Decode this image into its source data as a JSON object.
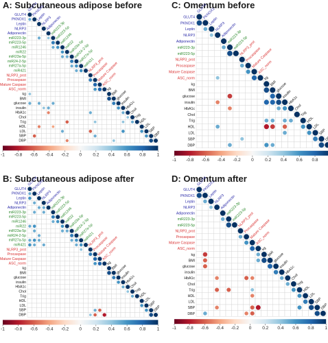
{
  "colors": {
    "protein": "#2a2aa8",
    "mirna": "#2e8b2e",
    "inflammasome": "#d93030",
    "clinical": "#111111",
    "grid": "#d0d0d0",
    "scale_neg": "#67001f",
    "scale_mid": "#f7f7f7",
    "scale_pos": "#053061"
  },
  "colorbar": {
    "ticks": [
      "-1",
      "-0.8",
      "-0.6",
      "-0.4",
      "-0.2",
      "0",
      "0.2",
      "0.4",
      "0.6",
      "0.8",
      "1"
    ]
  },
  "chart_data": [
    {
      "type": "heatmap",
      "title": "A: Subcutaneous adipose before",
      "variables": [
        "GLUT4",
        "PKNOX1",
        "Leptin",
        "NLRP3",
        "Adiponectin",
        "miR223-3p",
        "miR223-5p",
        "miR1246",
        "miR22",
        "miR23a-5p",
        "miR24-2-5p",
        "miR27a-5p",
        "miR421",
        "NLRP3_prot",
        "Procaspase",
        "Mature Caspase",
        "ASC_norm",
        "kg",
        "BMI",
        "glucose",
        "insulin",
        "HbA1c",
        "Chol",
        "Trig",
        "HDL",
        "LDL",
        "SBP",
        "DBP"
      ],
      "groups": [
        "protein",
        "protein",
        "protein",
        "protein",
        "protein",
        "mirna",
        "mirna",
        "mirna",
        "mirna",
        "mirna",
        "mirna",
        "mirna",
        "mirna",
        "inflammasome",
        "inflammasome",
        "inflammasome",
        "inflammasome",
        "clinical",
        "clinical",
        "clinical",
        "clinical",
        "clinical",
        "clinical",
        "clinical",
        "clinical",
        "clinical",
        "clinical",
        "clinical"
      ],
      "cells": [
        [
          1,
          0,
          0.5
        ],
        [
          5,
          2,
          0.5
        ],
        [
          5,
          4,
          0.4
        ],
        [
          6,
          5,
          0.7
        ],
        [
          7,
          5,
          0.5
        ],
        [
          7,
          6,
          0.6
        ],
        [
          8,
          7,
          0.6
        ],
        [
          9,
          7,
          0.5
        ],
        [
          9,
          8,
          0.5
        ],
        [
          10,
          9,
          0.7
        ],
        [
          11,
          9,
          0.5
        ],
        [
          11,
          10,
          0.6
        ],
        [
          12,
          10,
          0.5
        ],
        [
          12,
          11,
          0.6
        ],
        [
          14,
          13,
          0.7
        ],
        [
          15,
          14,
          0.8
        ],
        [
          16,
          15,
          0.8
        ],
        [
          16,
          14,
          0.6
        ],
        [
          18,
          17,
          0.9
        ],
        [
          19,
          18,
          0.7
        ],
        [
          20,
          19,
          0.6
        ],
        [
          21,
          20,
          0.5
        ],
        [
          22,
          21,
          0.4
        ],
        [
          23,
          22,
          0.5
        ],
        [
          25,
          24,
          0.6
        ],
        [
          26,
          25,
          0.6
        ],
        [
          27,
          26,
          0.9
        ],
        [
          17,
          0,
          0.4
        ],
        [
          19,
          0,
          0.5
        ],
        [
          19,
          2,
          0.5
        ],
        [
          19,
          5,
          0.5
        ],
        [
          20,
          3,
          0.4
        ],
        [
          20,
          4,
          0.5
        ],
        [
          21,
          4,
          -0.5
        ],
        [
          21,
          13,
          0.5
        ],
        [
          23,
          8,
          -0.6
        ],
        [
          23,
          14,
          0.4
        ],
        [
          23,
          20,
          0.4
        ],
        [
          24,
          2,
          -0.5
        ],
        [
          24,
          5,
          -0.4
        ],
        [
          25,
          13,
          -0.6
        ],
        [
          25,
          20,
          0.6
        ],
        [
          26,
          1,
          -0.6
        ],
        [
          26,
          14,
          0.5
        ],
        [
          27,
          8,
          -0.5
        ],
        [
          27,
          18,
          0.4
        ],
        [
          25,
          7,
          0.5
        ]
      ]
    },
    {
      "type": "heatmap",
      "title": "C: Omentum before",
      "variables": [
        "GLUT4",
        "PKNOX1",
        "Leptin",
        "NLRP3",
        "Adiponectin",
        "miR223-3p",
        "miR223-5p",
        "NLRP3_prot",
        "Procaspase",
        "Mature Caspase",
        "ASC_norm",
        "kg",
        "BMI",
        "glucose",
        "insulin",
        "HbA1c",
        "Chol",
        "Trig",
        "HDL",
        "LDL",
        "SBP",
        "DBP"
      ],
      "groups": [
        "protein",
        "protein",
        "protein",
        "protein",
        "protein",
        "mirna",
        "mirna",
        "inflammasome",
        "inflammasome",
        "inflammasome",
        "inflammasome",
        "clinical",
        "clinical",
        "clinical",
        "clinical",
        "clinical",
        "clinical",
        "clinical",
        "clinical",
        "clinical",
        "clinical",
        "clinical"
      ],
      "cells": [
        [
          1,
          0,
          0.9
        ],
        [
          2,
          1,
          0.5
        ],
        [
          3,
          2,
          0.4
        ],
        [
          5,
          4,
          0.5
        ],
        [
          6,
          5,
          0.9
        ],
        [
          8,
          7,
          0.5
        ],
        [
          9,
          8,
          0.6
        ],
        [
          10,
          9,
          0.8
        ],
        [
          12,
          11,
          0.9
        ],
        [
          13,
          12,
          0.8
        ],
        [
          14,
          13,
          0.9
        ],
        [
          15,
          14,
          0.6
        ],
        [
          17,
          15,
          0.5
        ],
        [
          18,
          17,
          0.6
        ],
        [
          19,
          18,
          0.6
        ],
        [
          20,
          19,
          0.7
        ],
        [
          21,
          20,
          0.9
        ],
        [
          10,
          3,
          0.4
        ],
        [
          13,
          5,
          -0.7
        ],
        [
          14,
          3,
          -0.5
        ],
        [
          14,
          11,
          0.8
        ],
        [
          14,
          12,
          0.8
        ],
        [
          15,
          5,
          -0.5
        ],
        [
          15,
          13,
          0.5
        ],
        [
          17,
          11,
          0.5
        ],
        [
          17,
          12,
          0.5
        ],
        [
          17,
          14,
          0.5
        ],
        [
          18,
          3,
          0.5
        ],
        [
          18,
          11,
          -0.8
        ],
        [
          18,
          12,
          -0.7
        ],
        [
          18,
          14,
          -0.6
        ],
        [
          19,
          14,
          0.5
        ],
        [
          20,
          7,
          0.4
        ],
        [
          21,
          5,
          0.5
        ],
        [
          21,
          11,
          0.6
        ],
        [
          21,
          12,
          0.5
        ]
      ]
    },
    {
      "type": "heatmap",
      "title": "B: Subcutaneous adipose after",
      "variables": [
        "GLUT4",
        "PKNOX1",
        "Leptin",
        "NLRP3",
        "Adiponectin",
        "miR223-3p",
        "miR223-5p",
        "miR1246",
        "miR22",
        "miR23a-5p",
        "miR24-2-5p",
        "miR27a-5p",
        "miR421",
        "NLRP3_prot",
        "Procaspase",
        "Mature Caspase",
        "ASC_norm",
        "kg",
        "BMI",
        "glucose",
        "insulin",
        "HbA1c",
        "Chol",
        "Trig",
        "HDL",
        "LDL",
        "SBP",
        "DBP"
      ],
      "groups": [
        "protein",
        "protein",
        "protein",
        "protein",
        "protein",
        "mirna",
        "mirna",
        "mirna",
        "mirna",
        "mirna",
        "mirna",
        "mirna",
        "mirna",
        "inflammasome",
        "inflammasome",
        "inflammasome",
        "inflammasome",
        "clinical",
        "clinical",
        "clinical",
        "clinical",
        "clinical",
        "clinical",
        "clinical",
        "clinical",
        "clinical",
        "clinical",
        "clinical"
      ],
      "cells": [
        [
          1,
          0,
          0.5
        ],
        [
          2,
          0,
          0.6
        ],
        [
          3,
          1,
          0.5
        ],
        [
          4,
          2,
          0.5
        ],
        [
          4,
          3,
          0.5
        ],
        [
          5,
          1,
          0.5
        ],
        [
          5,
          3,
          0.5
        ],
        [
          6,
          5,
          0.7
        ],
        [
          7,
          5,
          0.5
        ],
        [
          7,
          6,
          0.6
        ],
        [
          8,
          7,
          0.6
        ],
        [
          9,
          7,
          0.5
        ],
        [
          9,
          8,
          0.5
        ],
        [
          10,
          9,
          0.7
        ],
        [
          11,
          9,
          0.5
        ],
        [
          11,
          10,
          0.6
        ],
        [
          12,
          10,
          0.5
        ],
        [
          12,
          11,
          0.6
        ],
        [
          8,
          0,
          0.5
        ],
        [
          8,
          1,
          0.6
        ],
        [
          9,
          1,
          0.5
        ],
        [
          10,
          2,
          0.5
        ],
        [
          11,
          0,
          0.5
        ],
        [
          11,
          1,
          0.6
        ],
        [
          11,
          2,
          0.5
        ],
        [
          12,
          0,
          0.6
        ],
        [
          12,
          1,
          0.5
        ],
        [
          12,
          3,
          0.5
        ],
        [
          13,
          11,
          0.4
        ],
        [
          14,
          13,
          0.7
        ],
        [
          15,
          14,
          0.8
        ],
        [
          16,
          15,
          0.8
        ],
        [
          16,
          14,
          0.6
        ],
        [
          18,
          17,
          0.9
        ],
        [
          19,
          18,
          0.7
        ],
        [
          20,
          19,
          0.6
        ],
        [
          21,
          20,
          0.5
        ],
        [
          22,
          21,
          0.4
        ],
        [
          23,
          22,
          0.5
        ],
        [
          25,
          24,
          0.6
        ],
        [
          26,
          25,
          0.6
        ],
        [
          27,
          26,
          0.9
        ],
        [
          26,
          14,
          0.5
        ],
        [
          26,
          15,
          -0.6
        ],
        [
          27,
          14,
          -0.6
        ],
        [
          27,
          13,
          0.4
        ],
        [
          27,
          16,
          -0.8
        ]
      ]
    },
    {
      "type": "heatmap",
      "title": "D: Omentum after",
      "variables": [
        "GLUT4",
        "PKNOX1",
        "Leptin",
        "NLRP3",
        "Adiponectin",
        "miR223-3p",
        "miR223-5p",
        "NLRP3_prot",
        "Procaspase",
        "Mature Caspase",
        "ASC_norm",
        "kg",
        "BMI",
        "glucose",
        "insulin",
        "HbA1c",
        "Chol",
        "Trig",
        "HDL",
        "LDL",
        "SBP",
        "DBP"
      ],
      "groups": [
        "protein",
        "protein",
        "protein",
        "protein",
        "protein",
        "mirna",
        "mirna",
        "inflammasome",
        "inflammasome",
        "inflammasome",
        "inflammasome",
        "clinical",
        "clinical",
        "clinical",
        "clinical",
        "clinical",
        "clinical",
        "clinical",
        "clinical",
        "clinical",
        "clinical",
        "clinical"
      ],
      "cells": [
        [
          1,
          0,
          0.9
        ],
        [
          2,
          1,
          0.5
        ],
        [
          3,
          2,
          0.4
        ],
        [
          5,
          4,
          0.5
        ],
        [
          6,
          5,
          0.9
        ],
        [
          8,
          7,
          0.5
        ],
        [
          9,
          8,
          0.6
        ],
        [
          10,
          9,
          0.8
        ],
        [
          11,
          10,
          0.5
        ],
        [
          12,
          11,
          0.9
        ],
        [
          13,
          12,
          0.8
        ],
        [
          14,
          13,
          0.7
        ],
        [
          15,
          14,
          0.5
        ],
        [
          16,
          15,
          0.5
        ],
        [
          17,
          16,
          0.6
        ],
        [
          18,
          17,
          0.6
        ],
        [
          19,
          18,
          0.7
        ],
        [
          20,
          19,
          0.9
        ],
        [
          21,
          20,
          0.9
        ],
        [
          11,
          1,
          -0.7
        ],
        [
          12,
          1,
          -0.6
        ],
        [
          12,
          10,
          0.5
        ],
        [
          13,
          1,
          -0.6
        ],
        [
          15,
          3,
          -0.5
        ],
        [
          15,
          8,
          -0.6
        ],
        [
          15,
          9,
          -0.5
        ],
        [
          17,
          3,
          -0.6
        ],
        [
          17,
          5,
          -0.6
        ],
        [
          17,
          9,
          0.4
        ],
        [
          18,
          9,
          -0.5
        ],
        [
          20,
          3,
          -0.5
        ],
        [
          20,
          9,
          -0.6
        ],
        [
          20,
          10,
          -0.8
        ],
        [
          20,
          17,
          0.6
        ],
        [
          21,
          1,
          0.5
        ],
        [
          21,
          8,
          -0.5
        ],
        [
          21,
          9,
          -0.6
        ]
      ]
    }
  ]
}
